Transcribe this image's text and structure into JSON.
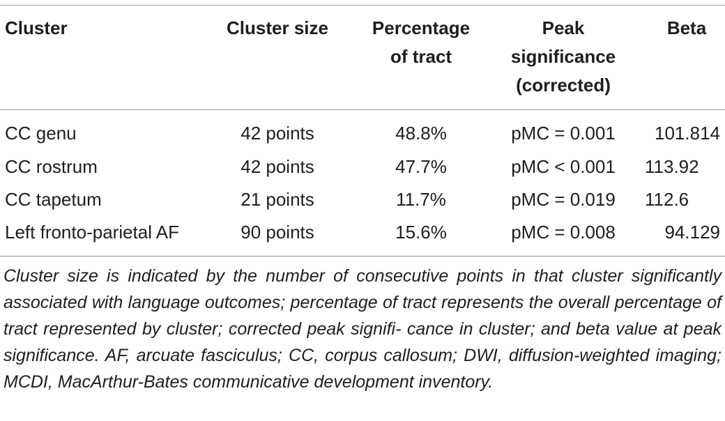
{
  "table": {
    "headers": {
      "cluster": "Cluster",
      "cluster_size": "Cluster size",
      "percentage_line1": "Percentage",
      "percentage_line2": "of tract",
      "peak_line1": "Peak",
      "peak_line2": "significance",
      "peak_line3": "(corrected)",
      "beta": "Beta"
    },
    "rows": [
      {
        "cluster": "CC genu",
        "cluster_size": "42 points",
        "percentage": "48.8%",
        "peak": "pMC = 0.001",
        "beta": "101.814"
      },
      {
        "cluster": "CC rostrum",
        "cluster_size": "42 points",
        "percentage": "47.7%",
        "peak": "pMC < 0.001",
        "beta": "113.92"
      },
      {
        "cluster": "CC tapetum",
        "cluster_size": "21 points",
        "percentage": "11.7%",
        "peak": "pMC = 0.019",
        "beta": "112.6"
      },
      {
        "cluster": "Left fronto-parietal AF",
        "cluster_size": "90 points",
        "percentage": "15.6%",
        "peak": "pMC = 0.008",
        "beta": "94.129"
      }
    ],
    "footnote": {
      "line1": "Cluster size is indicated by the number of consecutive points in that cluster",
      "line2": "significantly associated with language outcomes; percentage of tract represents",
      "line3": "the overall percentage of tract represented by cluster; corrected peak signifi-",
      "line4": "cance in cluster; and beta value at peak significance. AF, arcuate fasciculus;",
      "line5": "CC, corpus callosum; DWI, diffusion-weighted imaging; MCDI, MacArthur-Bates",
      "line6": "communicative development inventory."
    }
  }
}
